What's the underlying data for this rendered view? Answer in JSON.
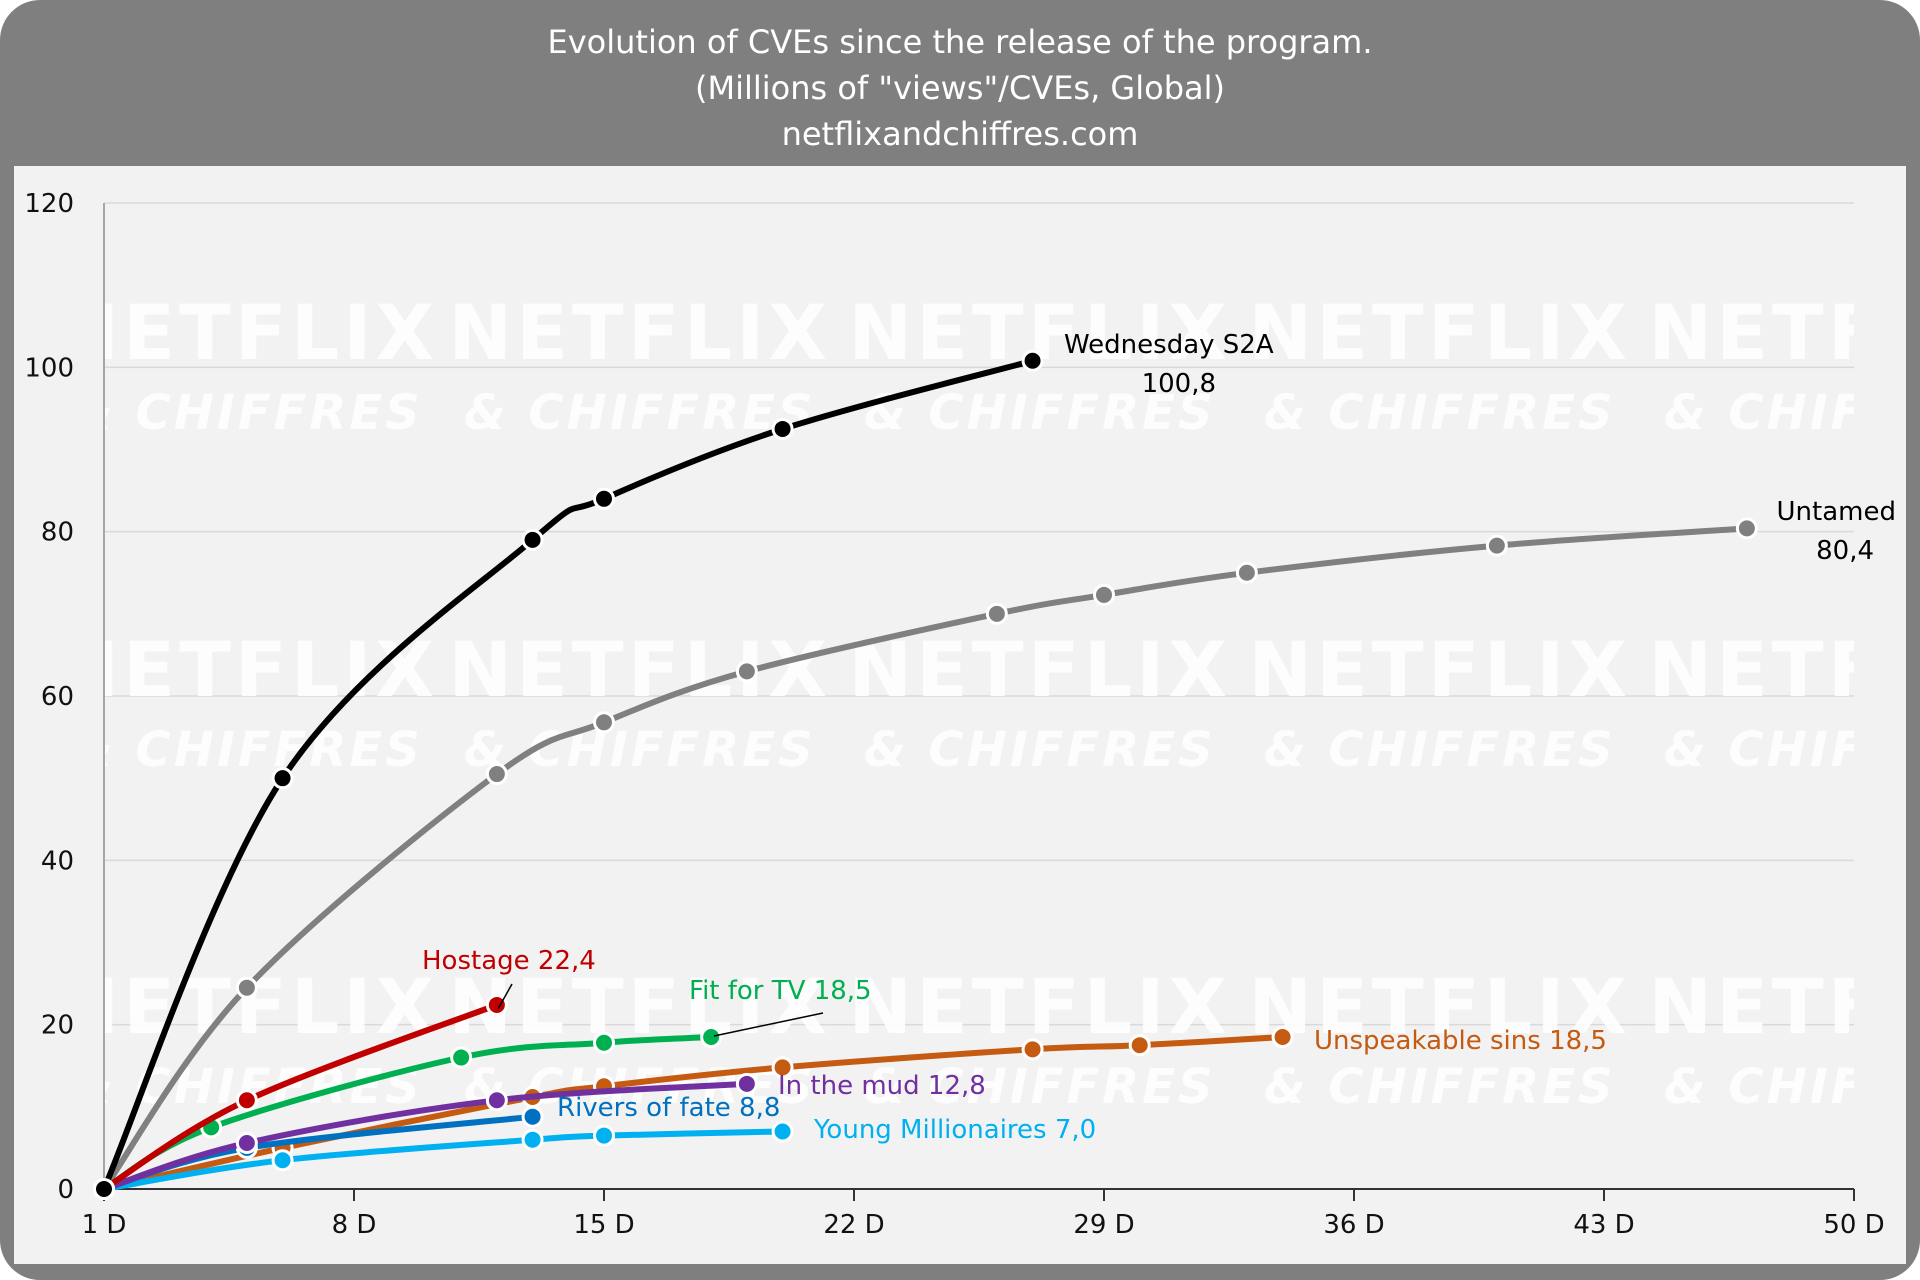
{
  "header": {
    "title": "Evolution of CVEs since the release of the program.",
    "subtitle": "(Millions of \"views\"/CVEs, Global)",
    "source": "netflixandchiffres.com"
  },
  "watermark": {
    "line1": "NETFLIX",
    "line2": "& CHIFFRES"
  },
  "chart_data": {
    "type": "line",
    "title": "Evolution of CVEs since the release of the program.",
    "subtitle": "(Millions of \"views\"/CVEs, Global)",
    "xlabel": "",
    "ylabel": "",
    "xlim": [
      1,
      50
    ],
    "ylim": [
      0,
      120
    ],
    "x_ticks": [
      1,
      8,
      15,
      22,
      29,
      36,
      43,
      50
    ],
    "x_tick_labels": [
      "1 D",
      "8 D",
      "15 D",
      "22 D",
      "29 D",
      "36 D",
      "43 D",
      "50 D"
    ],
    "y_ticks": [
      0,
      20,
      40,
      60,
      80,
      100,
      120
    ],
    "y_tick_labels": [
      "0",
      "20",
      "40",
      "60",
      "80",
      "100",
      "120"
    ],
    "grid": "horizontal",
    "legend": "none (series labelled at line ends)",
    "series": [
      {
        "id": "untamed",
        "color": "#808080",
        "label_lines": [
          "Untamed",
          "80,4"
        ],
        "points": [
          [
            1,
            0
          ],
          [
            5,
            24.5
          ],
          [
            12,
            50.5
          ],
          [
            15,
            56.8
          ],
          [
            19,
            63
          ],
          [
            26,
            70
          ],
          [
            29,
            72.3
          ],
          [
            33,
            75
          ],
          [
            40,
            78.3
          ],
          [
            47,
            80.4
          ]
        ]
      },
      {
        "id": "unspeakable",
        "color": "#c55a11",
        "label_lines": [
          "Unspeakable sins 18,5"
        ],
        "points": [
          [
            1,
            0
          ],
          [
            6,
            5
          ],
          [
            13,
            11.2
          ],
          [
            15,
            12.5
          ],
          [
            20,
            14.8
          ],
          [
            27,
            17
          ],
          [
            30,
            17.5
          ],
          [
            34,
            18.5
          ]
        ]
      },
      {
        "id": "young",
        "color": "#00b0f0",
        "label_lines": [
          "Young Millionaires 7,0"
        ],
        "points": [
          [
            1,
            0
          ],
          [
            6,
            3.5
          ],
          [
            13,
            6
          ],
          [
            15,
            6.5
          ],
          [
            20,
            7.0
          ]
        ]
      },
      {
        "id": "rivers",
        "color": "#0070c0",
        "label_lines": [
          "Rivers of fate 8,8"
        ],
        "points": [
          [
            1,
            0
          ],
          [
            5,
            5
          ],
          [
            13,
            8.8
          ]
        ]
      },
      {
        "id": "mud",
        "color": "#7030a0",
        "label_lines": [
          "In the mud 12,8"
        ],
        "points": [
          [
            1,
            0
          ],
          [
            5,
            5.6
          ],
          [
            12,
            10.8
          ],
          [
            19,
            12.8
          ]
        ]
      },
      {
        "id": "fit",
        "color": "#00b050",
        "label_lines": [
          "Fit for TV 18,5"
        ],
        "points": [
          [
            1,
            0
          ],
          [
            4,
            7.5
          ],
          [
            11,
            16
          ],
          [
            15,
            17.8
          ],
          [
            18,
            18.5
          ]
        ]
      },
      {
        "id": "hostage",
        "color": "#c00000",
        "label_lines": [
          "Hostage 22,4"
        ],
        "points": [
          [
            1,
            0
          ],
          [
            5,
            10.8
          ],
          [
            12,
            22.4
          ]
        ]
      },
      {
        "id": "wednesday",
        "color": "#000000",
        "label_lines": [
          "Wednesday S2A",
          "100,8"
        ],
        "points": [
          [
            1,
            0
          ],
          [
            6,
            50
          ],
          [
            13,
            79
          ],
          [
            15,
            84
          ],
          [
            20,
            92.5
          ],
          [
            27,
            100.8
          ]
        ]
      }
    ]
  }
}
